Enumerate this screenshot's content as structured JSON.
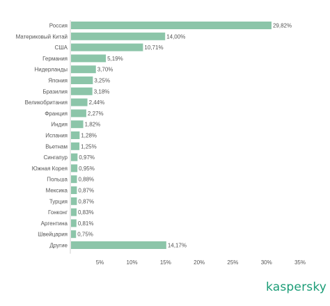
{
  "chart_data": {
    "type": "bar",
    "orientation": "horizontal",
    "categories": [
      "Россия",
      "Материковый Китай",
      "США",
      "Германия",
      "Нидерланды",
      "Япония",
      "Бразилия",
      "Великобритания",
      "Франция",
      "Индия",
      "Испания",
      "Вьетнам",
      "Сингапур",
      "Южная Корея",
      "Польша",
      "Мексика",
      "Турция",
      "Гонконг",
      "Аргентина",
      "Швейцария",
      "Другие"
    ],
    "values": [
      29.82,
      14.0,
      10.71,
      5.19,
      3.7,
      3.25,
      3.18,
      2.44,
      2.27,
      1.82,
      1.28,
      1.25,
      0.97,
      0.95,
      0.88,
      0.87,
      0.87,
      0.83,
      0.81,
      0.75,
      14.17
    ],
    "value_labels": [
      "29,82%",
      "14,00%",
      "10,71%",
      "5,19%",
      "3,70%",
      "3,25%",
      "3,18%",
      "2,44%",
      "2,27%",
      "1,82%",
      "1,28%",
      "1,25%",
      "0,97%",
      "0,95%",
      "0,88%",
      "0,87%",
      "0,87%",
      "0,83%",
      "0,81%",
      "0,75%",
      "14,17%"
    ],
    "x_ticks": [
      "5%",
      "10%",
      "15%",
      "20%",
      "25%",
      "30%",
      "35%"
    ],
    "xlim": [
      0,
      35
    ],
    "bar_color": "#8cc5a9",
    "grid": false,
    "title": "",
    "xlabel": "",
    "ylabel": ""
  },
  "brand": {
    "logo_text": "kaspersky",
    "color": "#1a9c76"
  }
}
